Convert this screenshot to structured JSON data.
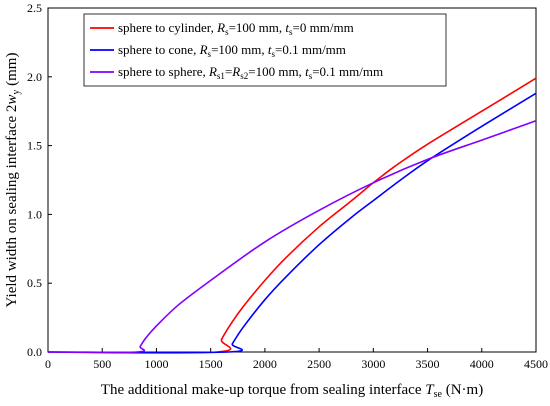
{
  "chart_data": {
    "type": "line",
    "xlabel_parts": [
      "The additional make-up torque  from sealing interface ",
      "T",
      "se",
      " (N·m)"
    ],
    "ylabel_parts": [
      "Yield width on sealing interface 2",
      "w",
      "y",
      " (mm)"
    ],
    "xlim": [
      0,
      4500
    ],
    "ylim": [
      0,
      2.5
    ],
    "x_ticks": [
      0,
      500,
      1000,
      1500,
      2000,
      2500,
      3000,
      3500,
      4000,
      4500
    ],
    "y_ticks": [
      "0.0",
      "0.5",
      "1.0",
      "1.5",
      "2.0",
      "2.5"
    ],
    "grid": false,
    "legend_position": "top-left",
    "series": [
      {
        "name": "sphere to cylinder, Rs=100 mm, ts=0 mm/mm",
        "legend_parts": [
          "sphere to cylinder, ",
          "R",
          "s",
          "=100 mm, ",
          "t",
          "s",
          "=0 mm/mm"
        ],
        "color": "#ff0000",
        "x": [
          0,
          1560,
          1600,
          1700,
          1800,
          2000,
          2200,
          2500,
          2800,
          3000,
          3200,
          3500,
          4000,
          4500
        ],
        "y": [
          0,
          0,
          0.09,
          0.22,
          0.33,
          0.52,
          0.69,
          0.91,
          1.1,
          1.23,
          1.35,
          1.51,
          1.75,
          1.99
        ]
      },
      {
        "name": "sphere to cone, Rs=100 mm, ts=0.1 mm/mm",
        "legend_parts": [
          "sphere to cone, ",
          "R",
          "s",
          "=100 mm, ",
          "t",
          "s",
          "=0.1 mm/mm"
        ],
        "color": "#0000ff",
        "x": [
          0,
          1660,
          1700,
          1800,
          2000,
          2200,
          2500,
          2800,
          3000,
          3200,
          3500,
          4000,
          4500
        ],
        "y": [
          0,
          0,
          0.06,
          0.18,
          0.38,
          0.55,
          0.78,
          0.98,
          1.1,
          1.22,
          1.39,
          1.64,
          1.88
        ]
      },
      {
        "name": "sphere to sphere, Rs1=Rs2=100 mm, ts=0.1 mm/mm",
        "legend_parts": [
          "sphere to sphere, ",
          "R",
          "s1",
          "=",
          "R",
          "s2",
          "=100 mm, ",
          "t",
          "s",
          "=0.1 mm/mm"
        ],
        "color": "#8000ff",
        "x": [
          0,
          820,
          850,
          900,
          1000,
          1200,
          1500,
          2000,
          2500,
          3000,
          3500,
          4000,
          4500
        ],
        "y": [
          0,
          0,
          0.04,
          0.1,
          0.19,
          0.34,
          0.52,
          0.8,
          1.03,
          1.23,
          1.4,
          1.54,
          1.68
        ]
      }
    ]
  }
}
